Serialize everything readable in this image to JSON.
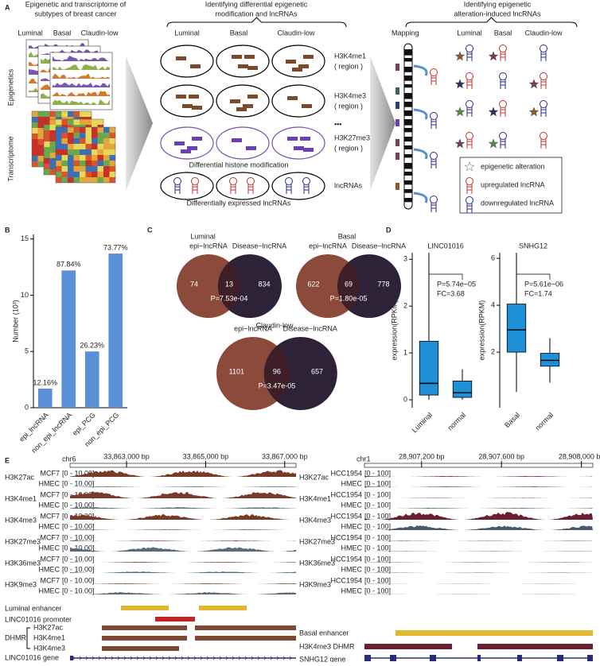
{
  "panel_labels": [
    "A",
    "B",
    "C",
    "D",
    "E"
  ],
  "A": {
    "step1_title": [
      "Epigenetic and transcriptome of",
      "subtypes of breast cancer"
    ],
    "subtypes": [
      "Luminal",
      "Basal",
      "Claudin-low"
    ],
    "row_labels": [
      "Epigenetics",
      "Transcriptome"
    ],
    "step2_title": [
      "Identifying differential epigenetic",
      "modification and lncRNAs"
    ],
    "marks": [
      {
        "name": "H3K4me1",
        "note": "( region )"
      },
      {
        "name": "H3K4me3",
        "note": "( region )"
      },
      {
        "name": "H3K27me3",
        "note": "( region )"
      }
    ],
    "ellipsis": "•••",
    "histone_caption": "Differential histone modification",
    "lncrna_label": "lncRNAs",
    "lncrna_caption": "Differentially expressed lncRNAs",
    "step3_title": [
      "Identifying epigenetic",
      "alteration-induced lncRNAs"
    ],
    "mapping": "Mapping",
    "legend": [
      "epigenetic alteration",
      "upregulated lncRNA",
      "downregulated lncRNA"
    ]
  },
  "C": {
    "venns": [
      {
        "title": "Luminal",
        "sets": [
          "epi−lncRNA",
          "Disease−lncRNA"
        ],
        "counts": [
          74,
          13,
          834
        ],
        "p": "P=7.53e-04"
      },
      {
        "title": "Basal",
        "sets": [
          "epi−lncRNA",
          "Disease−lncRNA"
        ],
        "counts": [
          622,
          69,
          778
        ],
        "p": "P=1.80e-05"
      },
      {
        "title": "Claudin-low",
        "sets": [
          "epi−lncRNA",
          "Disease−lncRNA"
        ],
        "counts": [
          1101,
          96,
          657
        ],
        "p": "P=3.47e-05"
      }
    ]
  },
  "E": {
    "left": {
      "chrom": "chr6",
      "coords": [
        "33,863,000 bp",
        "33,865,000 bp",
        "33,867,000 bp"
      ],
      "samples": [
        "MCF7",
        "HMEC"
      ],
      "range": "[0 - 10.00]",
      "tracks": [
        "H3K27ac",
        "H3K4me1",
        "H3K4me3",
        "H3K27me3",
        "H3K36me3",
        "H3K9me3"
      ],
      "enhancer": "Luminal enhancer",
      "promoter": "LINC01016 promoter",
      "dhmr": "DHMR",
      "dhmr_marks": [
        "H3K27ac",
        "H3K4me1",
        "H3K4me3"
      ],
      "gene": "LINC01016 gene"
    },
    "right": {
      "chrom": "chr1",
      "coords": [
        "28,907,200 bp",
        "28,907,600 bp",
        "28,908,000 bp"
      ],
      "samples": [
        "HCC1954",
        "HMEC"
      ],
      "range": "[0 - 100]",
      "tracks": [
        "H3K27ac",
        "H3K4me1",
        "H3K4me3",
        "H3K27me3",
        "H3K36me3",
        "H3K9me3"
      ],
      "enhancer": "Basal enhancer",
      "dhmr": "H3K4me3 DHMR",
      "gene": "SNHG12 gene"
    }
  },
  "chart_data": [
    {
      "type": "bar",
      "ylabel": "Number (10³)",
      "categories": [
        "epi_lncRNA",
        "non_epi_lncRNA",
        "epi_PCG",
        "non_epi_PCG"
      ],
      "values": [
        1.7,
        12.2,
        5.0,
        13.7
      ],
      "annotations": [
        "12.16%",
        "87.84%",
        "26.23%",
        "73.77%"
      ],
      "color": "#5b8fd6",
      "ylim": [
        0,
        15.4
      ],
      "yticks": [
        0,
        5,
        10,
        15
      ]
    },
    {
      "type": "box",
      "title": "LINC01016",
      "ylabel": "expression(RPKM)",
      "categories": [
        "Luminal",
        "normal"
      ],
      "boxes": [
        {
          "min": 0,
          "q1": 0.1,
          "median": 0.35,
          "q3": 1.25,
          "max": 3.14
        },
        {
          "min": 0,
          "q1": 0.05,
          "median": 0.15,
          "q3": 0.4,
          "max": 0.65
        }
      ],
      "annotations": [
        "P=5.74e−05",
        "FC=3.68"
      ],
      "color": "#1f8fd6",
      "ylim": [
        -0.17,
        3.14
      ],
      "yticks": [
        0,
        1,
        2,
        3
      ]
    },
    {
      "type": "box",
      "title": "SNHG12",
      "ylabel": "expression(RPKM)",
      "categories": [
        "Basal",
        "normal"
      ],
      "boxes": [
        {
          "min": 0.3,
          "q1": 2.0,
          "median": 2.95,
          "q3": 4.05,
          "max": 6.24
        },
        {
          "min": 0.7,
          "q1": 1.4,
          "median": 1.65,
          "q3": 1.95,
          "max": 2.6
        }
      ],
      "annotations": [
        "P=5.61e−06",
        "FC=1.74"
      ],
      "color": "#1f8fd6",
      "ylim": [
        -0.37,
        6.24
      ],
      "yticks": [
        2,
        4,
        6
      ]
    }
  ]
}
